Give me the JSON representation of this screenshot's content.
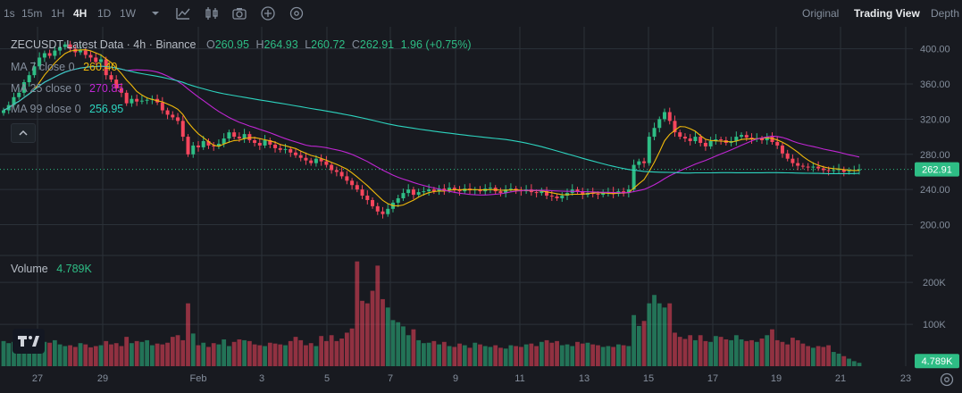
{
  "toolbar": {
    "timeframes": [
      "1s",
      "15m",
      "1H",
      "4H",
      "1D",
      "1W"
    ],
    "active_timeframe": "4H",
    "views": [
      "Original",
      "Trading View",
      "Depth"
    ],
    "active_view": "Trading View"
  },
  "header": {
    "symbol_line": "ZECUSDT Latest Data · 4h · Binance",
    "o_label": "O",
    "o_value": "260.95",
    "h_label": "H",
    "h_value": "264.93",
    "l_label": "L",
    "l_value": "260.72",
    "c_label": "C",
    "c_value": "262.91",
    "change": "1.96 (+0.75%)"
  },
  "ma": [
    {
      "label": "MA 7 close 0",
      "value": "260.40",
      "color": "#f0b90b"
    },
    {
      "label": "MA 25 close 0",
      "value": "270.85",
      "color": "#c026d3"
    },
    {
      "label": "MA 99 close 0",
      "value": "256.95",
      "color": "#2dd4bf"
    }
  ],
  "volume_label": "Volume",
  "volume_value": "4.789K",
  "last_price": "262.91",
  "colors": {
    "up": "#2ebd85",
    "down": "#f6465d",
    "bg": "#181a20",
    "grid": "#2b3139",
    "text": "#848e9c"
  },
  "chart_data": {
    "type": "candlestick",
    "price_axis": {
      "ticks": [
        400,
        360,
        320,
        280,
        240,
        200
      ],
      "range": [
        165,
        425
      ]
    },
    "volume_axis": {
      "ticks": [
        "200K",
        "100K"
      ],
      "tick_values": [
        200000,
        100000
      ],
      "max": 260000
    },
    "x_labels": [
      "27",
      "29",
      "Feb",
      "3",
      "5",
      "7",
      "9",
      "11",
      "13",
      "15",
      "17",
      "19",
      "21",
      "23"
    ],
    "closes": [
      330,
      336,
      345,
      350,
      362,
      370,
      380,
      390,
      395,
      392,
      398,
      402,
      405,
      400,
      396,
      398,
      393,
      390,
      385,
      388,
      370,
      365,
      355,
      350,
      338,
      343,
      340,
      341,
      342,
      343,
      339,
      330,
      325,
      322,
      318,
      300,
      280,
      290,
      288,
      295,
      290,
      289,
      292,
      298,
      305,
      300,
      298,
      303,
      296,
      293,
      290,
      296,
      291,
      287,
      285,
      286,
      282,
      279,
      276,
      273,
      270,
      275,
      272,
      268,
      262,
      260,
      255,
      250,
      245,
      240,
      233,
      228,
      221,
      215,
      212,
      218,
      225,
      230,
      236,
      240,
      234,
      237,
      238,
      240,
      238,
      241,
      239,
      242,
      240,
      238,
      241,
      239,
      240,
      238,
      241,
      242,
      238,
      236,
      240,
      241,
      239,
      238,
      240,
      237,
      236,
      238,
      233,
      232,
      230,
      233,
      236,
      240,
      238,
      234,
      236,
      235,
      234,
      236,
      237,
      235,
      238,
      236,
      240,
      268,
      272,
      270,
      300,
      310,
      320,
      328,
      318,
      305,
      300,
      298,
      295,
      300,
      293,
      289,
      295,
      297,
      296,
      293,
      295,
      300,
      302,
      299,
      297,
      298,
      296,
      300,
      294,
      290,
      281,
      275,
      270,
      267,
      266,
      265,
      266,
      264,
      262,
      261,
      262,
      263,
      260,
      261,
      262,
      262.91
    ],
    "volumes": [
      60,
      55,
      58,
      62,
      52,
      60,
      54,
      50,
      58,
      56,
      62,
      52,
      48,
      50,
      46,
      55,
      52,
      45,
      48,
      50,
      60,
      52,
      55,
      48,
      70,
      55,
      60,
      58,
      62,
      50,
      54,
      52,
      56,
      70,
      74,
      62,
      150,
      78,
      50,
      56,
      46,
      55,
      52,
      64,
      48,
      58,
      64,
      62,
      60,
      52,
      50,
      48,
      56,
      54,
      52,
      50,
      60,
      70,
      62,
      50,
      55,
      48,
      72,
      60,
      74,
      60,
      66,
      80,
      90,
      250,
      156,
      150,
      180,
      240,
      160,
      140,
      110,
      105,
      95,
      74,
      88,
      62,
      55,
      56,
      60,
      52,
      58,
      48,
      46,
      54,
      50,
      44,
      56,
      52,
      48,
      46,
      50,
      44,
      42,
      50,
      48,
      46,
      52,
      54,
      48,
      58,
      62,
      56,
      60,
      50,
      52,
      48,
      58,
      54,
      56,
      52,
      50,
      46,
      48,
      46,
      52,
      50,
      48,
      122,
      96,
      108,
      150,
      170,
      150,
      140,
      150,
      80,
      70,
      65,
      74,
      62,
      74,
      60,
      58,
      72,
      70,
      64,
      62,
      74,
      64,
      60,
      62,
      58,
      66,
      74,
      88,
      62,
      58,
      52,
      68,
      62,
      54,
      48,
      44,
      48,
      46,
      50,
      34,
      30,
      24,
      18,
      12,
      8
    ]
  }
}
